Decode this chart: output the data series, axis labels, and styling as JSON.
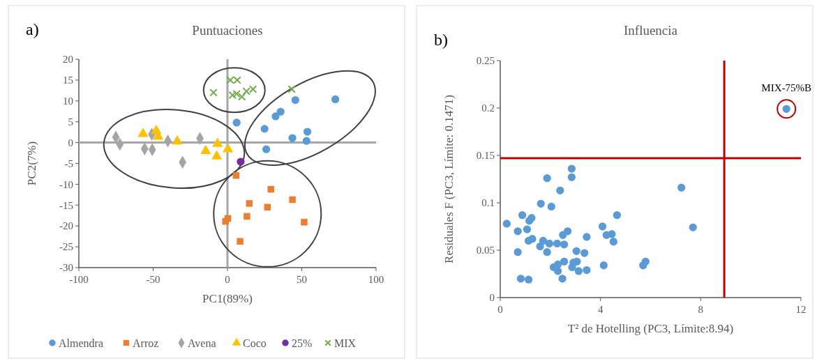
{
  "chart_data": [
    {
      "type": "scatter",
      "title": "Puntuaciones",
      "xlabel": "PC1(89%)",
      "ylabel": "PC2(7%)",
      "annotations": [
        "a)"
      ],
      "xlim": [
        -100,
        100
      ],
      "xticks": [
        -100,
        -50,
        0,
        50,
        100
      ],
      "ylim": [
        -30,
        20
      ],
      "yticks": [
        -30,
        -25,
        -20,
        -15,
        -10,
        -5,
        0,
        5,
        10,
        15,
        20
      ],
      "grid": false,
      "legend": "bottom",
      "ref_lines": [
        {
          "axis": "x",
          "value": 0,
          "color": "#a6a6a6"
        },
        {
          "axis": "y",
          "value": 0,
          "color": "#a6a6a6"
        }
      ],
      "series": [
        {
          "name": "Almendra",
          "color": "#5b9bd5",
          "marker": "circle",
          "x": [
            6.2,
            45.7,
            72.6,
            35.8,
            32.4,
            25.0,
            53.8,
            43.7,
            53.2,
            26.1
          ],
          "values": [
            4.8,
            10.2,
            10.4,
            7.4,
            6.3,
            3.3,
            2.6,
            1.1,
            0.4,
            -1.6
          ]
        },
        {
          "name": "Arroz",
          "color": "#ed7d31",
          "marker": "square",
          "x": [
            5.8,
            29.2,
            14.7,
            43.7,
            26.9,
            13.1,
            0.3,
            -1.3,
            51.6,
            8.5
          ],
          "values": [
            -7.9,
            -11.2,
            -14.6,
            -13.7,
            -15.5,
            -17.7,
            -18.2,
            -18.9,
            -19.1,
            -23.7
          ]
        },
        {
          "name": "Avena",
          "color": "#a5a5a5",
          "marker": "diamond",
          "x": [
            -75.1,
            -72.4,
            -55.7,
            -50.6,
            -50.9,
            -40.1,
            -18.5,
            -30.2
          ],
          "values": [
            1.3,
            -0.4,
            -1.5,
            -1.7,
            2.0,
            0.4,
            1.0,
            -4.7
          ]
        },
        {
          "name": "Coco",
          "color": "#ffc000",
          "marker": "triangle",
          "x": [
            -56.8,
            -47.9,
            -46.6,
            -33.8,
            -14.6,
            -6.7,
            -7.2,
            0.3
          ],
          "values": [
            2.1,
            2.8,
            1.4,
            0.3,
            -2.0,
            -0.3,
            -3.3,
            -1.6
          ]
        },
        {
          "name": "25%",
          "color": "#7030a0",
          "marker": "circle",
          "x": [
            8.9
          ],
          "values": [
            -4.6
          ]
        },
        {
          "name": "MIX",
          "color": "#70ad47",
          "marker": "cross",
          "x": [
            -9.4,
            1.9,
            6.6,
            3.4,
            6.2,
            9.7,
            12.8,
            17.2,
            43.3
          ],
          "values": [
            12.0,
            15.0,
            15.0,
            11.4,
            11.7,
            11.0,
            12.3,
            12.8,
            12.8
          ]
        }
      ]
    },
    {
      "type": "scatter",
      "title": "Influencia",
      "xlabel": "T² de Hotelling (PC3, Límite:8.94)",
      "ylabel": "Residuales F (PC3, Límite: 0.1471)",
      "xlim": [
        0,
        12
      ],
      "xticks": [
        0,
        4,
        8,
        12
      ],
      "ylim": [
        0,
        0.25
      ],
      "yticks": [
        0,
        0.05,
        0.1,
        0.15,
        0.2,
        0.25
      ],
      "grid": false,
      "annotations": [
        "b)",
        {
          "text": "MIX-75%B",
          "x": 11.42,
          "y": 0.199
        }
      ],
      "ref_lines": [
        {
          "axis": "x",
          "value": 8.94,
          "color": "#c00000"
        },
        {
          "axis": "y",
          "value": 0.1471,
          "color": "#c00000"
        }
      ],
      "series": [
        {
          "color": "#5b9bd5",
          "marker": "circle",
          "x": [
            0.26,
            0.7,
            0.7,
            0.82,
            0.88,
            1.07,
            1.13,
            1.16,
            1.25,
            1.13,
            1.28,
            1.62,
            1.59,
            1.71,
            1.87,
            1.87,
            1.96,
            2.04,
            2.39,
            2.13,
            2.3,
            2.3,
            2.27,
            2.55,
            2.48,
            2.5,
            2.69,
            2.55,
            2.85,
            2.85,
            2.87,
            2.92,
            3.06,
            3.04,
            3.13,
            3.36,
            3.45,
            3.45,
            4.08,
            4.13,
            4.24,
            4.45,
            4.52,
            4.66,
            5.7,
            5.8,
            7.23,
            7.69,
            11.42
          ],
          "values": [
            0.078,
            0.07,
            0.048,
            0.02,
            0.087,
            0.072,
            0.019,
            0.081,
            0.084,
            0.06,
            0.062,
            0.099,
            0.054,
            0.06,
            0.048,
            0.126,
            0.057,
            0.096,
            0.113,
            0.032,
            0.035,
            0.028,
            0.057,
            0.056,
            0.02,
            0.066,
            0.07,
            0.038,
            0.136,
            0.127,
            0.032,
            0.037,
            0.038,
            0.049,
            0.028,
            0.047,
            0.064,
            0.029,
            0.075,
            0.034,
            0.066,
            0.067,
            0.059,
            0.087,
            0.034,
            0.038,
            0.116,
            0.074,
            0.199
          ]
        }
      ]
    }
  ]
}
